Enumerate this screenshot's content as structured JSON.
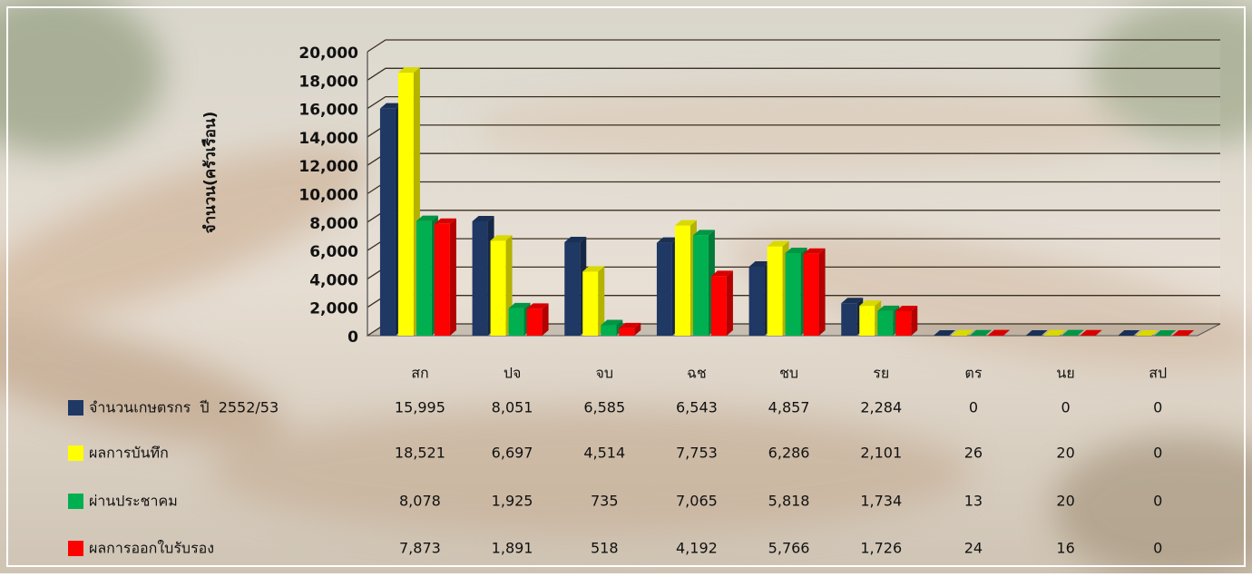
{
  "chart_data": {
    "type": "bar3d",
    "y_axis_label": "จำนวน(ครัวเรือน)",
    "categories": [
      "สก",
      "ปจ",
      "จบ",
      "ฉช",
      "ชบ",
      "รย",
      "ตร",
      "นย",
      "สป"
    ],
    "ylim": [
      0,
      20000
    ],
    "yticks": [
      0,
      {
        "value": 2000,
        "label": "2,000"
      },
      {
        "value": 4000,
        "label": "4,000"
      },
      {
        "value": 6000,
        "label": "6,000"
      },
      {
        "value": 8000,
        "label": "8,000"
      },
      {
        "value": 10000,
        "label": "10,000"
      },
      {
        "value": 12000,
        "label": "12,000"
      },
      {
        "value": 14000,
        "label": "14,000"
      },
      {
        "value": 16000,
        "label": "16,000"
      },
      {
        "value": 18000,
        "label": "18,000"
      },
      {
        "value": 20000,
        "label": "20,000"
      }
    ],
    "grid": true,
    "series": [
      {
        "name": "จำนวนเกษตรกร  ปี  2552/53",
        "color": "#1f3864",
        "values": [
          15995,
          8051,
          6585,
          6543,
          4857,
          2284,
          0,
          0,
          0
        ],
        "value_labels": [
          "15,995",
          "8,051",
          "6,585",
          "6,543",
          "4,857",
          "2,284",
          "0",
          "0",
          "0"
        ]
      },
      {
        "name": "ผลการบันทึก",
        "color": "#ffff00",
        "values": [
          18521,
          6697,
          4514,
          7753,
          6286,
          2101,
          26,
          20,
          0
        ],
        "value_labels": [
          "18,521",
          "6,697",
          "4,514",
          "7,753",
          "6,286",
          "2,101",
          "26",
          "20",
          "0"
        ]
      },
      {
        "name": "ผ่านประชาคม",
        "color": "#00b050",
        "values": [
          8078,
          1925,
          735,
          7065,
          5818,
          1734,
          13,
          20,
          0
        ],
        "value_labels": [
          "8,078",
          "1,925",
          "735",
          "7,065",
          "5,818",
          "1,734",
          "13",
          "20",
          "0"
        ]
      },
      {
        "name": "ผลการออกใบรับรอง",
        "color": "#ff0000",
        "values": [
          7873,
          1891,
          518,
          4192,
          5766,
          1726,
          24,
          16,
          0
        ],
        "value_labels": [
          "7,873",
          "1,891",
          "518",
          "4,192",
          "5,766",
          "1,726",
          "24",
          "16",
          "0"
        ]
      }
    ]
  }
}
